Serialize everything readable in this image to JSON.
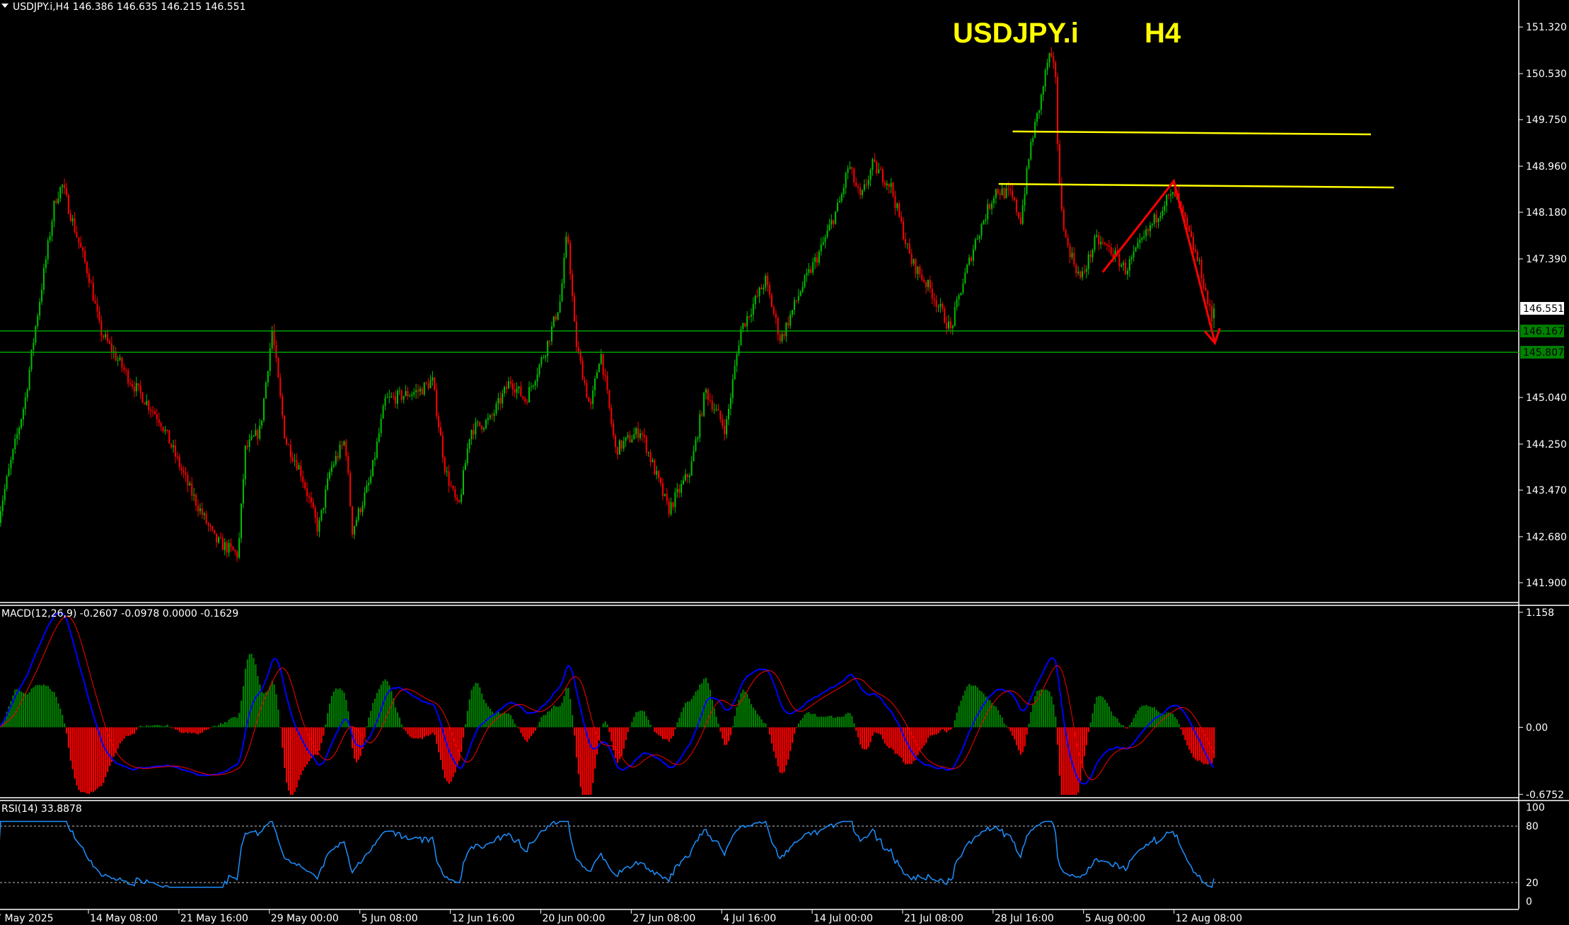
{
  "header": {
    "symbol_info": "USDJPY.i,H4  146.386 146.635 146.215 146.551"
  },
  "chart_title": {
    "symbol": "USDJPY.i",
    "timeframe": "H4"
  },
  "colors": {
    "background": "#000000",
    "bull": "#00c000",
    "bear": "#ff0000",
    "support": "#00a000",
    "resistance": "#ffff00",
    "arrow": "#ff0000",
    "macd_line": "#0000ff",
    "signal_line": "#ff0000",
    "rsi_line": "#1e90ff"
  },
  "price_axis": {
    "ticks": [
      "151.320",
      "150.530",
      "149.750",
      "148.960",
      "148.180",
      "147.390",
      "145.040",
      "144.250",
      "143.470",
      "142.680",
      "141.900"
    ],
    "current_price": "146.551",
    "level_labels": [
      "146.167",
      "145.807"
    ]
  },
  "time_axis": {
    "ticks": [
      "7 May 2025",
      "14 May 08:00",
      "21 May 16:00",
      "29 May 00:00",
      "5 Jun 08:00",
      "12 Jun 16:00",
      "20 Jun 00:00",
      "27 Jun 08:00",
      "4 Jul 16:00",
      "14 Jul 00:00",
      "21 Jul 08:00",
      "28 Jul 16:00",
      "5 Aug 00:00",
      "12 Aug 08:00"
    ]
  },
  "macd": {
    "label": "MACD(12,26,9) -0.2607 -0.0978 0.0000 -0.1629",
    "scale": [
      "1.158",
      "0.00",
      "-0.6752"
    ]
  },
  "rsi": {
    "label": "RSI(14) 33.8878",
    "scale": [
      "100",
      "80",
      "20",
      "0"
    ]
  },
  "chart_data": {
    "type": "candlestick",
    "symbol": "USDJPY.i",
    "timeframe": "H4",
    "ylim": [
      141.5,
      151.8
    ],
    "last_bar": {
      "open": 146.386,
      "high": 146.635,
      "low": 146.215,
      "close": 146.551
    },
    "horizontal_levels": [
      146.167,
      145.807
    ],
    "resistance_lines": [
      [
        149.55,
        149.5
      ],
      [
        148.66,
        148.6
      ]
    ],
    "approx_close_path": [
      143.13,
      144.99,
      146.18,
      148.39,
      148.64,
      147.88,
      147.03,
      146.18,
      145.33,
      144.66,
      143.47,
      142.62,
      142.37,
      144.15,
      144.49,
      146.18,
      144.32,
      143.81,
      142.79,
      143.81,
      144.32,
      142.79,
      143.64,
      144.99,
      145.16,
      145.33,
      143.81,
      143.13,
      144.49,
      144.66,
      145.33,
      144.99,
      145.84,
      146.69,
      147.88,
      146.01,
      144.83,
      145.84,
      144.15,
      144.49,
      143.13,
      143.81,
      145.16,
      144.49,
      146.18,
      147.03,
      146.01,
      146.86,
      147.54,
      148.39,
      148.98,
      148.39,
      148.98,
      148.64,
      147.37,
      146.86,
      146.18,
      146.86,
      147.71,
      148.56,
      148.47,
      148.05,
      149.32,
      150.08,
      150.85,
      150.51,
      148.73,
      147.71,
      147.03,
      147.71,
      147.54,
      147.2,
      147.79,
      148.39,
      148.47,
      147.71,
      147.2,
      146.27,
      146.551
    ]
  }
}
